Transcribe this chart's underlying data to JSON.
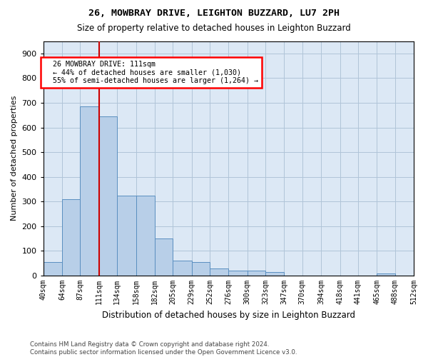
{
  "title": "26, MOWBRAY DRIVE, LEIGHTON BUZZARD, LU7 2PH",
  "subtitle": "Size of property relative to detached houses in Leighton Buzzard",
  "xlabel": "Distribution of detached houses by size in Leighton Buzzard",
  "ylabel": "Number of detached properties",
  "footnote": "Contains HM Land Registry data © Crown copyright and database right 2024.\nContains public sector information licensed under the Open Government Licence v3.0.",
  "annotation_line1": "26 MOWBRAY DRIVE: 111sqm",
  "annotation_line2": "← 44% of detached houses are smaller (1,030)",
  "annotation_line3": "55% of semi-detached houses are larger (1,264) →",
  "bar_color": "#b8cfe8",
  "bar_edge_color": "#5a8fc0",
  "ref_line_color": "#cc0000",
  "ref_line_value": 111,
  "bins": [
    40,
    64,
    87,
    111,
    134,
    158,
    182,
    205,
    229,
    252,
    276,
    300,
    323,
    347,
    370,
    394,
    418,
    441,
    465,
    488,
    512
  ],
  "bin_labels": [
    "40sqm",
    "64sqm",
    "87sqm",
    "111sqm",
    "134sqm",
    "158sqm",
    "182sqm",
    "205sqm",
    "229sqm",
    "252sqm",
    "276sqm",
    "300sqm",
    "323sqm",
    "347sqm",
    "370sqm",
    "394sqm",
    "418sqm",
    "441sqm",
    "465sqm",
    "488sqm",
    "512sqm"
  ],
  "counts": [
    55,
    310,
    685,
    645,
    325,
    325,
    150,
    60,
    55,
    30,
    20,
    20,
    15,
    0,
    0,
    0,
    0,
    0,
    10,
    0
  ],
  "ylim": [
    0,
    950
  ],
  "yticks": [
    0,
    100,
    200,
    300,
    400,
    500,
    600,
    700,
    800,
    900
  ],
  "background_color": "#ffffff",
  "plot_bg_color": "#dce8f5",
  "grid_color": "#b0c4d8"
}
